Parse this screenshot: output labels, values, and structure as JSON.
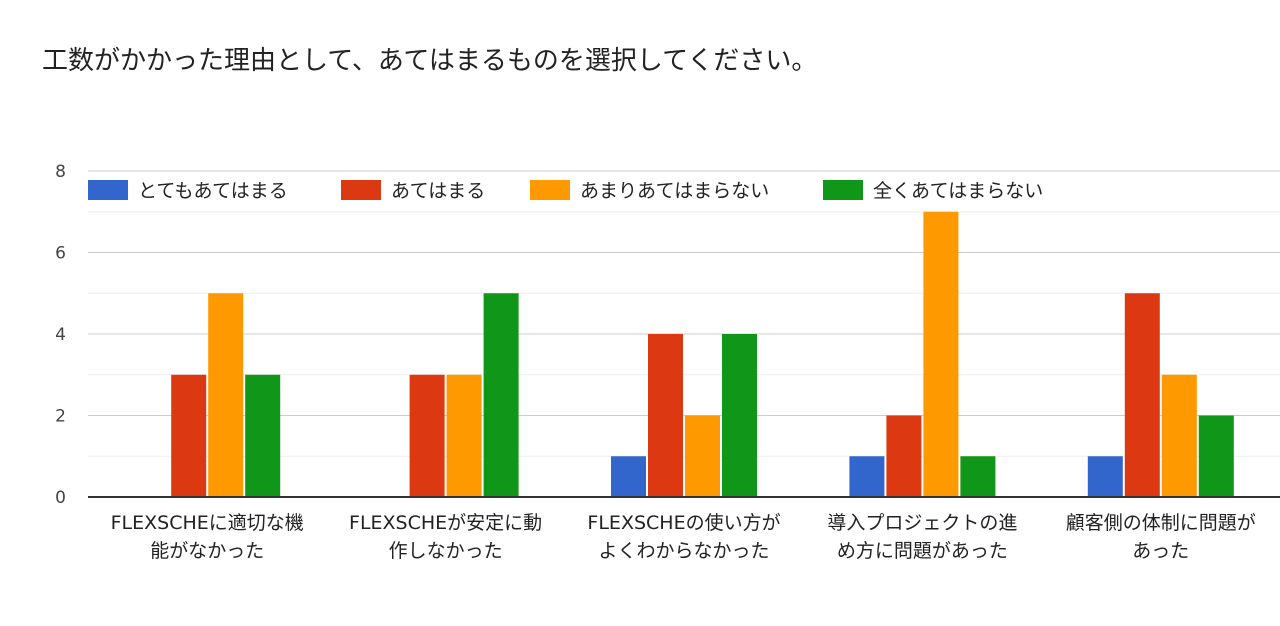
{
  "chart_data": {
    "type": "bar",
    "title": "工数がかかった理由として、あてはまるものを選択してください。",
    "categories": [
      [
        "FLEXSCHEに適切な機",
        "能がなかった"
      ],
      [
        "FLEXSCHEが安定に動",
        "作しなかった"
      ],
      [
        "FLEXSCHEの使い方が",
        "よくわからなかった"
      ],
      [
        "導入プロジェクトの進",
        "め方に問題があった"
      ],
      [
        "顧客側の体制に問題が",
        "あった"
      ]
    ],
    "series": [
      {
        "name": "とてもあてはまる",
        "color": "#3366cc",
        "values": [
          0,
          0,
          1,
          1,
          1
        ]
      },
      {
        "name": "あてはまる",
        "color": "#dc3912",
        "values": [
          3,
          3,
          4,
          2,
          5
        ]
      },
      {
        "name": "あまりあてはまらない",
        "color": "#ff9900",
        "values": [
          5,
          3,
          2,
          7,
          3
        ]
      },
      {
        "name": "全くあてはまらない",
        "color": "#109618",
        "values": [
          3,
          5,
          4,
          1,
          2
        ]
      }
    ],
    "ylim": [
      0,
      8
    ],
    "yticks": [
      0,
      2,
      4,
      6,
      8
    ],
    "grid": true,
    "legend_position": "top"
  }
}
